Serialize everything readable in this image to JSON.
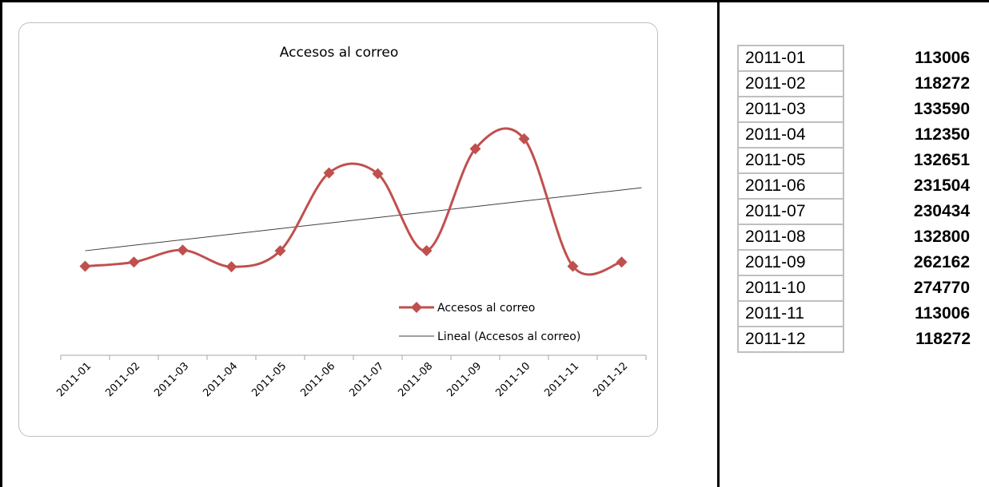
{
  "chart_data": {
    "type": "line",
    "title": "Accesos al correo",
    "categories": [
      "2011-01",
      "2011-02",
      "2011-03",
      "2011-04",
      "2011-05",
      "2011-06",
      "2011-07",
      "2011-08",
      "2011-09",
      "2011-10",
      "2011-11",
      "2011-12"
    ],
    "series": [
      {
        "name": "Accesos al correo",
        "values": [
          113006,
          118272,
          133590,
          112350,
          132651,
          231504,
          230434,
          132800,
          262162,
          274770,
          113006,
          118272
        ],
        "color": "#c0504d",
        "marker": "diamond",
        "smooth": true
      },
      {
        "name": "Lineal (Accesos al correo)",
        "values": [
          132710,
          139730,
          146750,
          153770,
          160790,
          167810,
          174830,
          181850,
          188870,
          195890,
          202910,
          209930
        ],
        "color": "#404040",
        "trendline": true
      }
    ],
    "xlabel": "",
    "ylabel": "",
    "ylim": [
      0,
      300000
    ],
    "grid": false,
    "legend_position": "bottom-right"
  },
  "table": {
    "rows": [
      {
        "month": "2011-01",
        "value": "113006"
      },
      {
        "month": "2011-02",
        "value": "118272"
      },
      {
        "month": "2011-03",
        "value": "133590"
      },
      {
        "month": "2011-04",
        "value": "112350"
      },
      {
        "month": "2011-05",
        "value": "132651"
      },
      {
        "month": "2011-06",
        "value": "231504"
      },
      {
        "month": "2011-07",
        "value": "230434"
      },
      {
        "month": "2011-08",
        "value": "132800"
      },
      {
        "month": "2011-09",
        "value": "262162"
      },
      {
        "month": "2011-10",
        "value": "274770"
      },
      {
        "month": "2011-11",
        "value": "113006"
      },
      {
        "month": "2011-12",
        "value": "118272"
      }
    ]
  }
}
